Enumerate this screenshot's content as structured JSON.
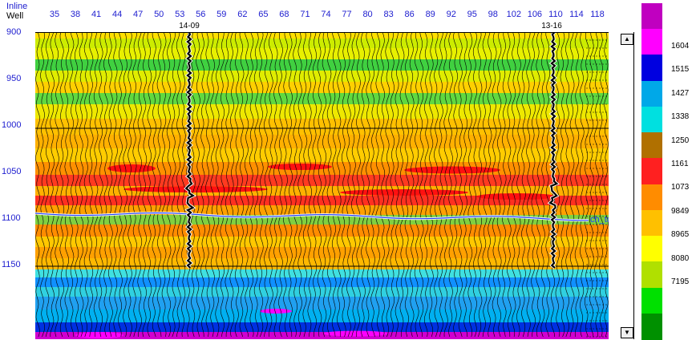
{
  "header": {
    "inline_label": "Inline",
    "well_label": "Well",
    "inline_ticks": [
      "35",
      "38",
      "41",
      "44",
      "47",
      "50",
      "53",
      "56",
      "59",
      "62",
      "65",
      "68",
      "71",
      "74",
      "77",
      "80",
      "83",
      "86",
      "89",
      "92",
      "95",
      "98",
      "102",
      "106",
      "110",
      "114",
      "118"
    ]
  },
  "time_axis": {
    "ticks": [
      "900",
      "950",
      "1000",
      "1050",
      "1100",
      "1150"
    ]
  },
  "wells": [
    {
      "name": "14-09"
    },
    {
      "name": "13-16"
    }
  ],
  "horizon": {
    "name": "ch_top"
  },
  "colorbar": {
    "colors": [
      "#c000c0",
      "#ff00ff",
      "#0000e0",
      "#00a8e8",
      "#00e0e0",
      "#b07000",
      "#ff2020",
      "#ff8c00",
      "#ffc000",
      "#ffff00",
      "#b0e000",
      "#00e000",
      "#009000"
    ],
    "values": [
      "1604",
      "1515",
      "1427",
      "1338",
      "1250",
      "1161",
      "1073",
      "9849",
      "8965",
      "8080",
      "7195"
    ]
  }
}
